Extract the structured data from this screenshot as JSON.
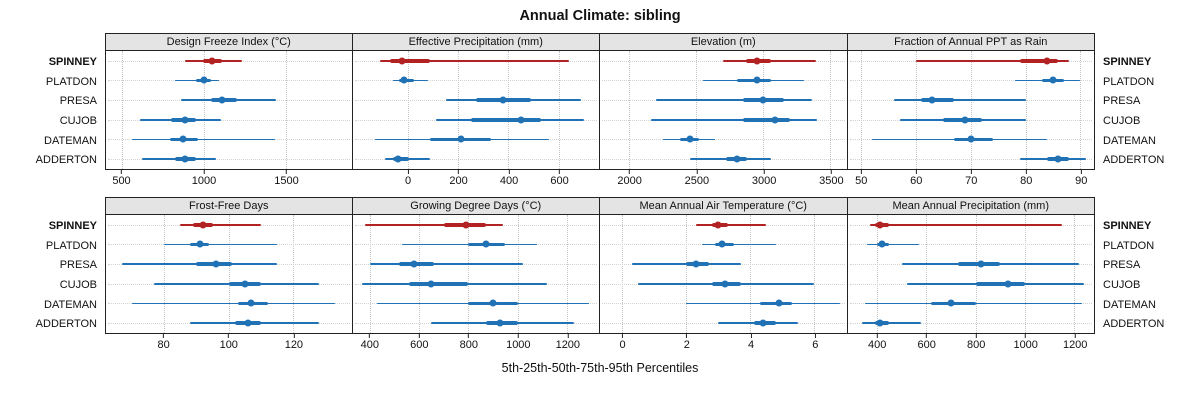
{
  "title": "Annual Climate: sibling",
  "caption": "5th-25th-50th-75th-95th Percentiles",
  "colors": {
    "highlight": "#b22222",
    "normal": "#2171b5",
    "strip_bg": "#e4e4e4",
    "border": "#222222"
  },
  "chart_data": {
    "type": "scatter",
    "subtype": "percentile-whisker-dotplot-trellis",
    "percentiles": [
      5,
      25,
      50,
      75,
      95
    ],
    "stations": [
      "SPINNEY",
      "PLATDON",
      "PRESA",
      "CUJOB",
      "DATEMAN",
      "ADDERTON"
    ],
    "highlight_station": "SPINNEY",
    "layout": {
      "rows": 2,
      "cols": 4,
      "grid": "dotted",
      "legend": "none",
      "row_labels_sides": [
        "left",
        "right"
      ]
    },
    "panels": [
      {
        "title": "Design Freeze Index (°C)",
        "xlim": [
          400,
          1900
        ],
        "ticks": [
          500,
          1000,
          1500
        ],
        "values": {
          "SPINNEY": [
            880,
            990,
            1050,
            1110,
            1230
          ],
          "PLATDON": [
            820,
            950,
            1000,
            1040,
            1090
          ],
          "PRESA": [
            860,
            1040,
            1110,
            1200,
            1440
          ],
          "CUJOB": [
            610,
            800,
            880,
            950,
            1100
          ],
          "DATEMAN": [
            560,
            790,
            870,
            960,
            1430
          ],
          "ADDERTON": [
            620,
            820,
            880,
            950,
            1070
          ]
        }
      },
      {
        "title": "Effective Precipitation (mm)",
        "xlim": [
          -220,
          760
        ],
        "ticks": [
          0,
          200,
          400,
          600
        ],
        "values": {
          "SPINNEY": [
            -110,
            -70,
            -25,
            90,
            640
          ],
          "PLATDON": [
            -60,
            -35,
            -15,
            25,
            80
          ],
          "PRESA": [
            150,
            270,
            380,
            490,
            690
          ],
          "CUJOB": [
            110,
            250,
            450,
            530,
            700
          ],
          "DATEMAN": [
            -130,
            90,
            210,
            330,
            560
          ],
          "ADDERTON": [
            -90,
            -60,
            -40,
            5,
            90
          ]
        }
      },
      {
        "title": "Elevation (m)",
        "xlim": [
          1780,
          3620
        ],
        "ticks": [
          2000,
          2500,
          3000,
          3500
        ],
        "values": {
          "SPINNEY": [
            2700,
            2870,
            2950,
            3060,
            3390
          ],
          "PLATDON": [
            2550,
            2800,
            2950,
            3060,
            3300
          ],
          "PRESA": [
            2200,
            2850,
            3000,
            3150,
            3360
          ],
          "CUJOB": [
            2160,
            2850,
            3090,
            3200,
            3400
          ],
          "DATEMAN": [
            2250,
            2380,
            2450,
            2520,
            2640
          ],
          "ADDERTON": [
            2450,
            2720,
            2800,
            2880,
            3060
          ]
        }
      },
      {
        "title": "Fraction of Annual PPT as Rain",
        "xlim": [
          47.5,
          92.5
        ],
        "ticks": [
          50,
          60,
          70,
          80,
          90
        ],
        "values": {
          "SPINNEY": [
            60,
            79,
            84,
            86,
            88
          ],
          "PLATDON": [
            78,
            83,
            85,
            87,
            90
          ],
          "PRESA": [
            56,
            61,
            63,
            67,
            80
          ],
          "CUJOB": [
            57,
            65,
            69,
            72,
            80
          ],
          "DATEMAN": [
            52,
            67,
            70,
            74,
            84
          ],
          "ADDERTON": [
            79,
            84,
            86,
            88,
            91
          ]
        }
      },
      {
        "title": "Frost-Free Days",
        "xlim": [
          62,
          138
        ],
        "ticks": [
          80,
          100,
          120
        ],
        "values": {
          "SPINNEY": [
            85,
            89,
            92,
            95,
            110
          ],
          "PLATDON": [
            80,
            88,
            91,
            94,
            115
          ],
          "PRESA": [
            67,
            90,
            96,
            101,
            115
          ],
          "CUJOB": [
            77,
            100,
            105,
            110,
            128
          ],
          "DATEMAN": [
            70,
            103,
            107,
            112,
            133
          ],
          "ADDERTON": [
            88,
            102,
            106,
            110,
            128
          ]
        }
      },
      {
        "title": "Growing Degree Days (°C)",
        "xlim": [
          330,
          1330
        ],
        "ticks": [
          400,
          600,
          800,
          1000,
          1200
        ],
        "values": {
          "SPINNEY": [
            380,
            700,
            790,
            870,
            940
          ],
          "PLATDON": [
            530,
            800,
            870,
            950,
            1080
          ],
          "PRESA": [
            400,
            520,
            580,
            660,
            1020
          ],
          "CUJOB": [
            370,
            560,
            650,
            800,
            1120
          ],
          "DATEMAN": [
            430,
            800,
            900,
            1000,
            1290
          ],
          "ADDERTON": [
            650,
            870,
            930,
            1000,
            1230
          ]
        }
      },
      {
        "title": "Mean Annual Air Temperature (°C)",
        "xlim": [
          -0.7,
          7.0
        ],
        "ticks": [
          0,
          2,
          4,
          6
        ],
        "values": {
          "SPINNEY": [
            2.3,
            2.8,
            3.0,
            3.3,
            4.5
          ],
          "PLATDON": [
            2.5,
            2.9,
            3.1,
            3.5,
            4.8
          ],
          "PRESA": [
            0.3,
            2.0,
            2.3,
            2.7,
            3.7
          ],
          "CUJOB": [
            0.5,
            2.8,
            3.2,
            3.7,
            6.0
          ],
          "DATEMAN": [
            2.0,
            4.3,
            4.9,
            5.3,
            6.8
          ],
          "ADDERTON": [
            3.0,
            4.1,
            4.4,
            4.8,
            5.5
          ]
        }
      },
      {
        "title": "Mean Annual Precipitation (mm)",
        "xlim": [
          280,
          1280
        ],
        "ticks": [
          400,
          600,
          800,
          1000,
          1200
        ],
        "values": {
          "SPINNEY": [
            370,
            390,
            410,
            450,
            1150
          ],
          "PLATDON": [
            360,
            400,
            420,
            450,
            570
          ],
          "PRESA": [
            500,
            730,
            820,
            900,
            1220
          ],
          "CUJOB": [
            520,
            800,
            930,
            1000,
            1240
          ],
          "DATEMAN": [
            350,
            620,
            700,
            800,
            1230
          ],
          "ADDERTON": [
            340,
            390,
            410,
            450,
            580
          ]
        }
      }
    ]
  }
}
